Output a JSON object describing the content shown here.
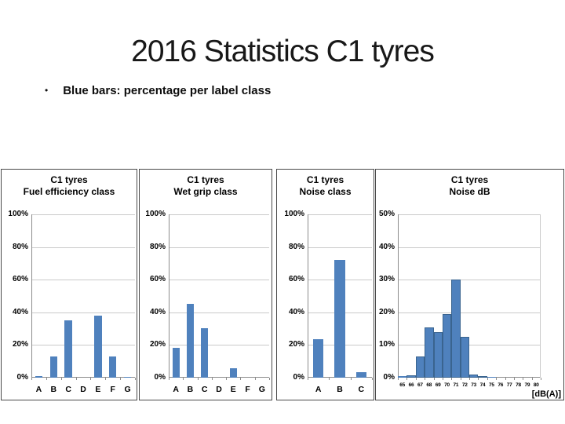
{
  "slide": {
    "title": "2016 Statistics C1 tyres",
    "bullet_glyph": "•",
    "bullet": "Blue bars: percentage per label class"
  },
  "colors": {
    "bar_fill": "#4f81bd",
    "bar_border": "#3a648f",
    "gridline": "#c9c9c9",
    "axis": "#8c8c8c",
    "panel_border": "#4a4a4a",
    "text": "#000000"
  },
  "chart_data": [
    {
      "type": "bar",
      "title": "C1 tyres",
      "subtitle": "Fuel efficiency class",
      "categories": [
        "A",
        "B",
        "C",
        "D",
        "E",
        "F",
        "G"
      ],
      "values": [
        1,
        13,
        35,
        0,
        38,
        13,
        0.4
      ],
      "ylim": [
        0,
        100
      ],
      "ytick_step": 20,
      "ytick_labels": [
        "0%",
        "20%",
        "40%",
        "60%",
        "80%",
        "100%"
      ],
      "grid": true,
      "legend": "none"
    },
    {
      "type": "bar",
      "title": "C1 tyres",
      "subtitle": "Wet grip class",
      "categories": [
        "A",
        "B",
        "C",
        "D",
        "E",
        "F",
        "G"
      ],
      "values": [
        18.5,
        45,
        30.5,
        0,
        6,
        0,
        0
      ],
      "ylim": [
        0,
        100
      ],
      "ytick_step": 20,
      "ytick_labels": [
        "0%",
        "20%",
        "40%",
        "60%",
        "80%",
        "100%"
      ],
      "grid": true,
      "legend": "none"
    },
    {
      "type": "bar",
      "title": "C1 tyres",
      "subtitle": "Noise class",
      "categories": [
        "A",
        "B",
        "C"
      ],
      "values": [
        23.5,
        72,
        3.5
      ],
      "ylim": [
        0,
        100
      ],
      "ytick_step": 20,
      "ytick_labels": [
        "0%",
        "20%",
        "40%",
        "60%",
        "80%",
        "100%"
      ],
      "grid": true,
      "legend": "none"
    },
    {
      "type": "histogram",
      "title": "C1 tyres",
      "subtitle": "Noise dB",
      "categories": [
        "65",
        "66",
        "67",
        "68",
        "69",
        "70",
        "71",
        "72",
        "73",
        "74",
        "75",
        "76",
        "77",
        "78",
        "79",
        "80"
      ],
      "values": [
        0.4,
        0.8,
        6.5,
        15.5,
        14,
        19.5,
        30,
        12.5,
        1,
        0.5,
        0.2,
        0,
        0,
        0,
        0,
        0
      ],
      "xlabel": "[dB(A)]",
      "ylim": [
        0,
        50
      ],
      "ytick_step": 10,
      "ytick_labels": [
        "0%",
        "10%",
        "20%",
        "30%",
        "40%",
        "50%"
      ],
      "grid": true,
      "legend": "none"
    }
  ]
}
